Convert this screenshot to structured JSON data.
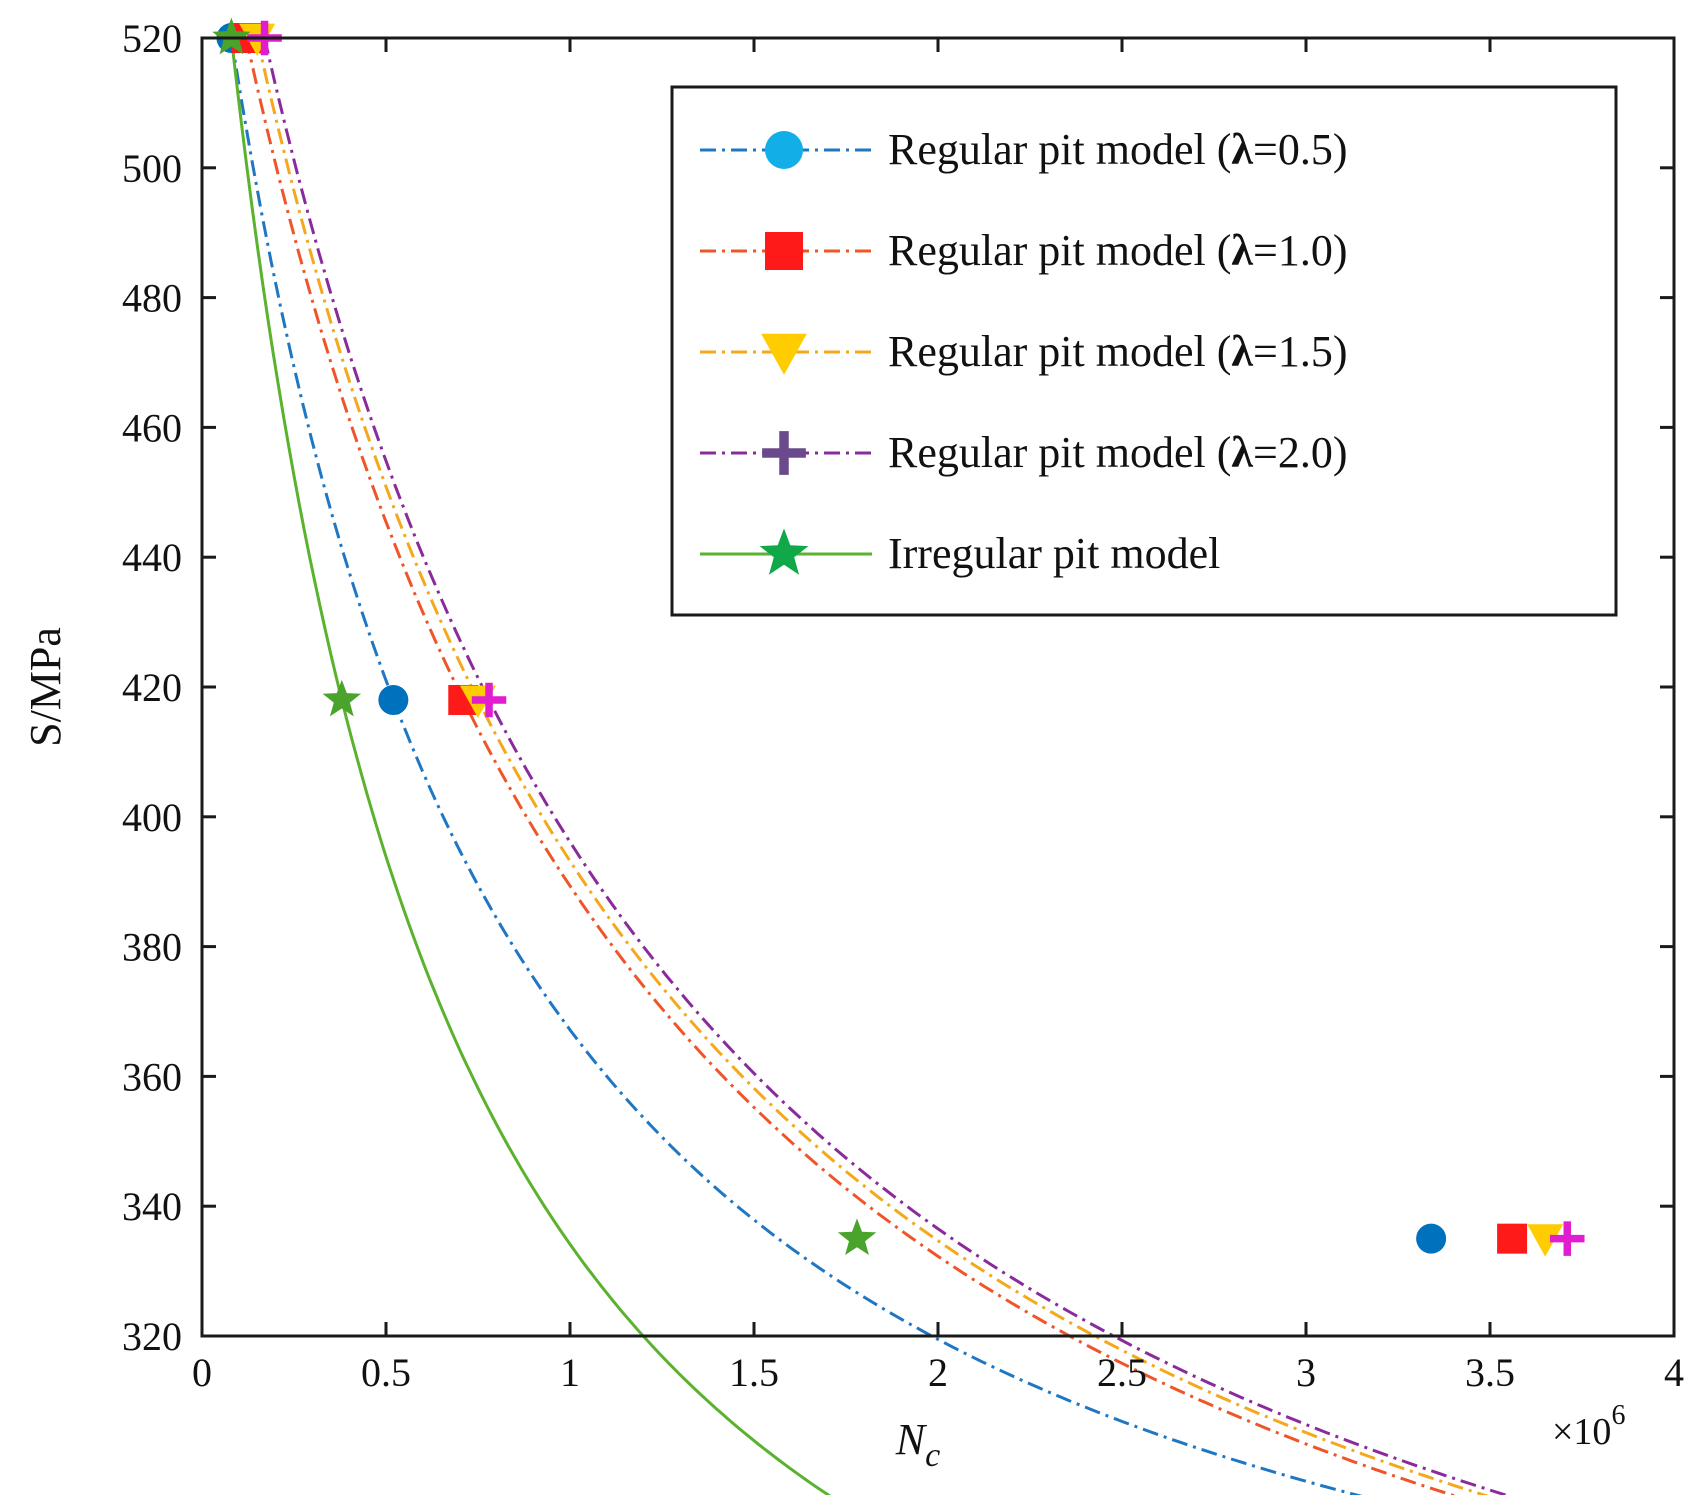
{
  "chart_data": {
    "type": "line",
    "title": "",
    "xlabel": "N",
    "xlabel_sub": "c",
    "ylabel": "S/MPa",
    "x_multiplier_label": "×10",
    "x_multiplier_exp": "6",
    "xlim": [
      0,
      4
    ],
    "ylim": [
      320,
      520
    ],
    "xticks": [
      0,
      0.5,
      1,
      1.5,
      2,
      2.5,
      3,
      3.5,
      4
    ],
    "xtick_labels": [
      "0",
      "0.5",
      "1",
      "1.5",
      "2",
      "2.5",
      "3",
      "3.5",
      "4"
    ],
    "yticks": [
      320,
      340,
      360,
      380,
      400,
      420,
      440,
      460,
      480,
      500,
      520
    ],
    "ytick_labels": [
      "320",
      "340",
      "360",
      "380",
      "400",
      "420",
      "440",
      "460",
      "480",
      "500",
      "520"
    ],
    "grid": false,
    "legend_position": "top-right",
    "series": [
      {
        "name": "Regular pit model (λ=0.5)",
        "legend_prefix": "Regular pit model (",
        "legend_lambda": "λ",
        "legend_suffix": "=0.5)",
        "line_color": "#1f77c4",
        "marker_color": "#0072bd",
        "legend_marker_color": "#12aee8",
        "marker": "circle",
        "dash": "16,6,3,6",
        "x": [
          0.08,
          0.52,
          3.34
        ],
        "y": [
          520,
          418,
          335
        ]
      },
      {
        "name": "Regular pit model (λ=1.0)",
        "legend_prefix": "Regular pit model (",
        "legend_lambda": "λ",
        "legend_suffix": "=1.0)",
        "line_color": "#f0552a",
        "marker_color": "#ff1a1a",
        "legend_marker_color": "#ff1a1a",
        "marker": "square",
        "dash": "16,6,3,6",
        "x": [
          0.12,
          0.71,
          3.56
        ],
        "y": [
          520,
          418,
          335
        ]
      },
      {
        "name": "Regular pit model (λ=1.5)",
        "legend_prefix": "Regular pit model (",
        "legend_lambda": "λ",
        "legend_suffix": "=1.5)",
        "line_color": "#f5a81c",
        "marker_color": "#ffcc00",
        "legend_marker_color": "#ffcc00",
        "marker": "triangle-down",
        "dash": "16,6,3,6",
        "x": [
          0.15,
          0.75,
          3.65
        ],
        "y": [
          520,
          418,
          335
        ]
      },
      {
        "name": "Regular pit model (λ=2.0)",
        "legend_prefix": "Regular pit model (",
        "legend_lambda": "λ",
        "legend_suffix": "=2.0)",
        "line_color": "#8a2b9c",
        "marker_color": "#e21ccf",
        "legend_marker_color": "#6a4a8c",
        "marker": "plus",
        "dash": "16,6,3,6",
        "x": [
          0.17,
          0.78,
          3.71
        ],
        "y": [
          520,
          418,
          335
        ]
      },
      {
        "name": "Irregular pit model",
        "legend_prefix": "Irregular pit model",
        "legend_lambda": "",
        "legend_suffix": "",
        "line_color": "#5ab22e",
        "marker_color": "#4aa32a",
        "legend_marker_color": "#11a84a",
        "marker": "star",
        "dash": "",
        "x": [
          0.08,
          0.38,
          1.78
        ],
        "y": [
          520,
          418,
          335
        ]
      }
    ]
  }
}
